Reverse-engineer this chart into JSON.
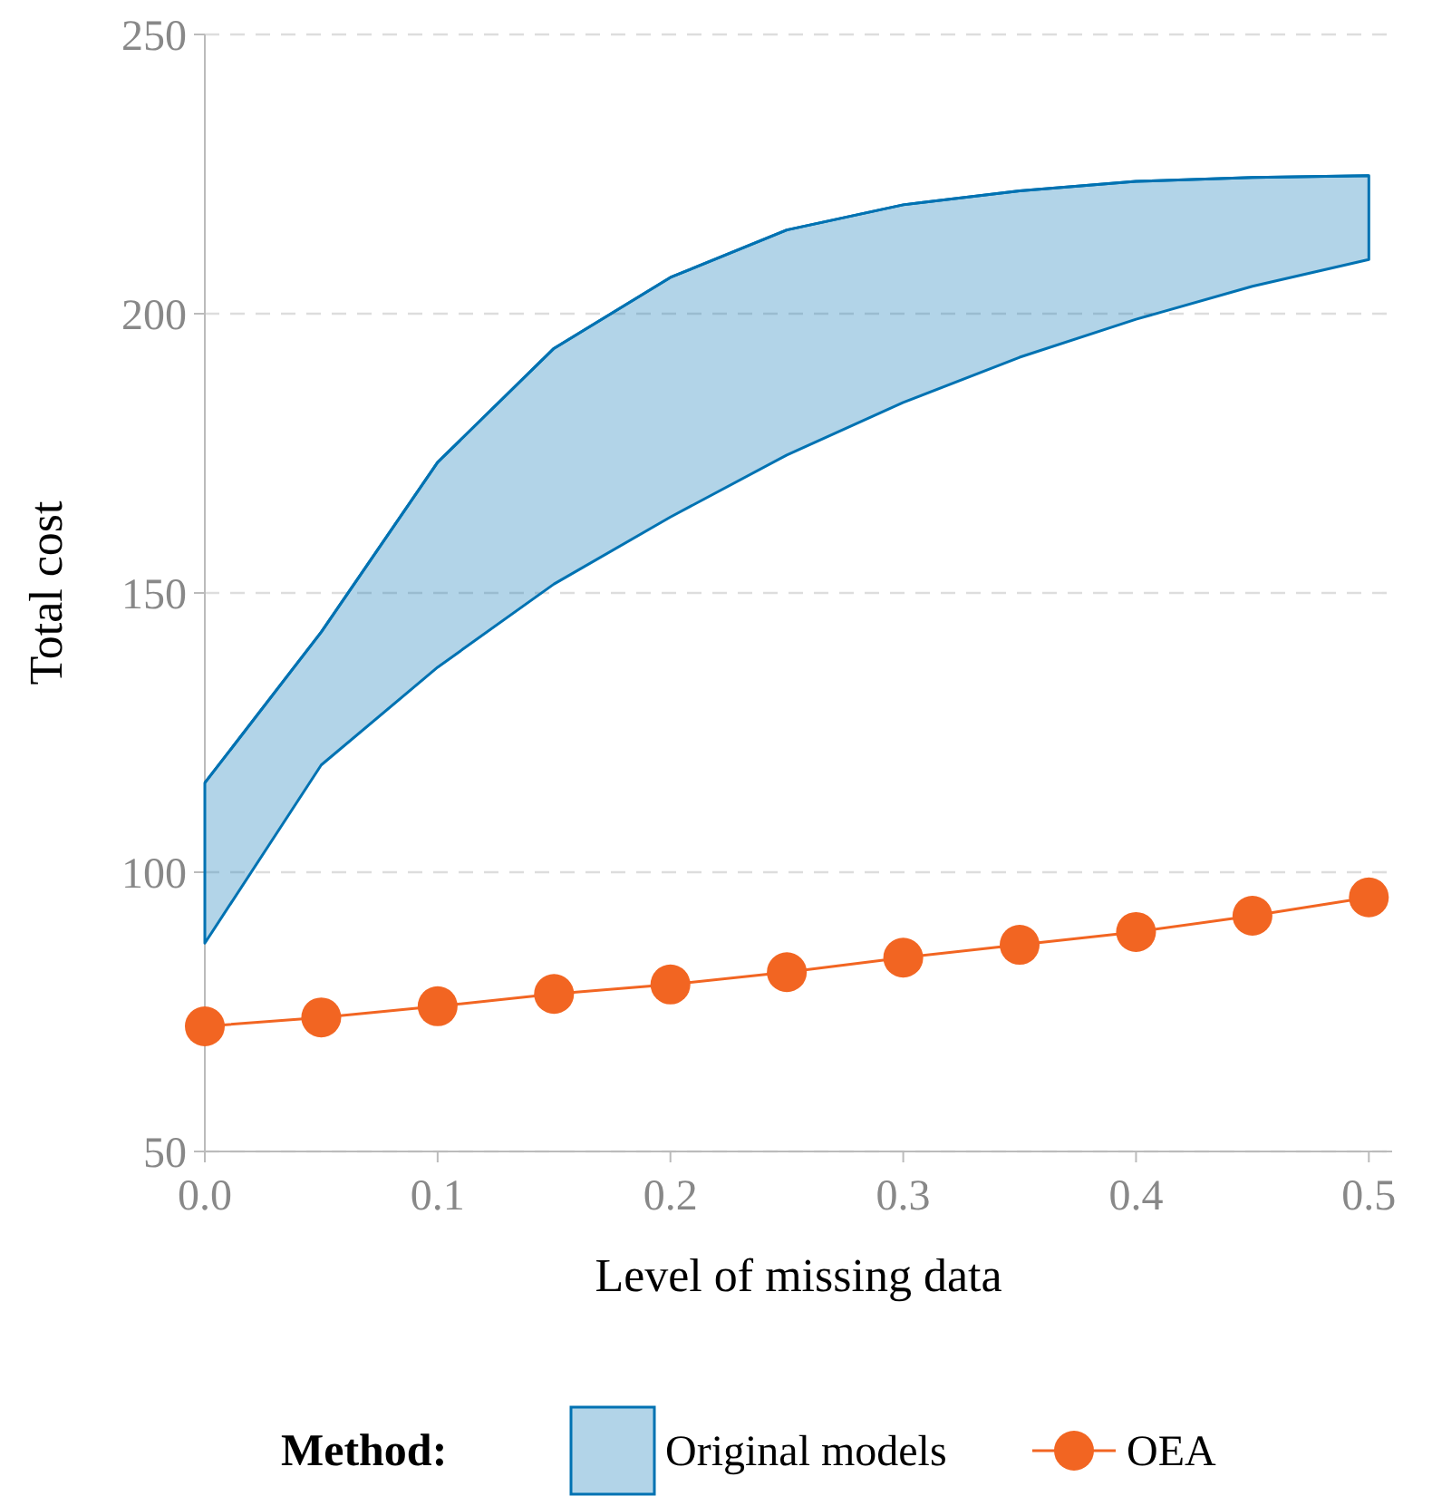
{
  "chart_data": {
    "type": "line",
    "xlabel": "Level of missing data",
    "ylabel": "Total cost",
    "legend_title": "Method:",
    "legend": "bottom",
    "grid": "y",
    "x": [
      0,
      0.05,
      0.1,
      0.15,
      0.2,
      0.25,
      0.3,
      0.35,
      0.4,
      0.45,
      0.5
    ],
    "xlim": [
      0,
      0.51
    ],
    "xticks": [
      {
        "value": 0,
        "label": "0.0"
      },
      0.1,
      0.2,
      0.3,
      0.4,
      0.5
    ],
    "ylim": [
      50,
      250
    ],
    "yticks": [
      50,
      100,
      150,
      200,
      250
    ],
    "series": [
      {
        "name": "Original models",
        "type": "line",
        "marker": "none",
        "color": "#0072b2",
        "values": [
          116,
          143,
          173.4,
          193.8,
          206.5,
          215,
          219.5,
          222,
          223.7,
          224.4,
          224.7
        ],
        "lower": [
          87.3,
          119.2,
          136.7,
          151.6,
          163.6,
          174.7,
          184.1,
          192.2,
          199,
          204.9,
          209.7
        ],
        "upper": [
          116,
          143,
          173.4,
          193.8,
          206.5,
          215,
          219.5,
          222,
          223.7,
          224.4,
          224.7
        ]
      },
      {
        "name": "OEA",
        "type": "line",
        "color": "#f26522",
        "marker": "circle",
        "values": [
          72.4,
          74,
          76,
          78.2,
          79.9,
          82.1,
          84.7,
          87,
          89.3,
          92.2,
          95.5
        ]
      }
    ]
  }
}
